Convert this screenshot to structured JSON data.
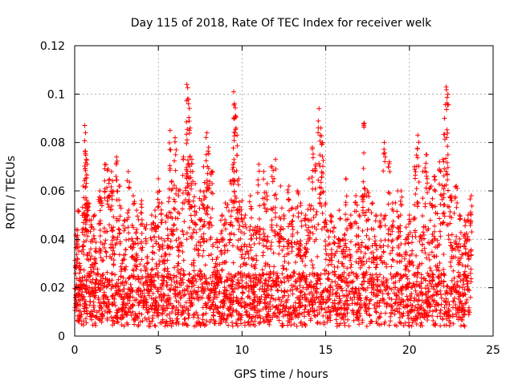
{
  "chart_data": {
    "type": "scatter",
    "title": "Day 115 of 2018, Rate Of TEC Index for receiver welk",
    "xlabel": "GPS time / hours",
    "ylabel": "ROTI / TECUs",
    "xlim": [
      0,
      25
    ],
    "ylim": [
      0,
      0.12
    ],
    "xticks": [
      0,
      5,
      10,
      15,
      20,
      25
    ],
    "xtick_labels": [
      "0",
      "5",
      "10",
      "15",
      "20",
      "25"
    ],
    "yticks": [
      0,
      0.02,
      0.04,
      0.06,
      0.08,
      0.1,
      0.12
    ],
    "ytick_labels": [
      "0",
      "0.02",
      "0.04",
      "0.06",
      "0.08",
      "0.1",
      "0.12"
    ],
    "grid": true,
    "marker": "+",
    "color": "#ff0000",
    "series": [
      {
        "name": "ROTI",
        "x": [
          0.1,
          0.2,
          0.3,
          0.5,
          0.6,
          0.65,
          0.7,
          0.75,
          0.8,
          1.0,
          1.2,
          1.5,
          1.6,
          1.8,
          2.0,
          2.2,
          2.3,
          2.5,
          2.7,
          3.0,
          3.2,
          3.5,
          3.7,
          4.0,
          4.3,
          4.6,
          4.8,
          5.0,
          5.2,
          5.5,
          5.7,
          5.8,
          6.0,
          6.2,
          6.5,
          6.7,
          6.75,
          6.8,
          6.9,
          7.0,
          7.2,
          7.5,
          7.7,
          7.9,
          8.0,
          8.2,
          8.5,
          8.8,
          9.0,
          9.3,
          9.5,
          9.55,
          9.6,
          9.7,
          9.8,
          10.0,
          10.2,
          10.5,
          10.8,
          11.0,
          11.3,
          11.5,
          11.8,
          12.0,
          12.3,
          12.5,
          12.8,
          13.0,
          13.3,
          13.5,
          13.8,
          14.0,
          14.2,
          14.4,
          14.6,
          14.7,
          14.8,
          15.0,
          15.3,
          15.5,
          15.8,
          16.0,
          16.2,
          16.5,
          16.8,
          17.0,
          17.2,
          17.3,
          17.5,
          17.8,
          18.0,
          18.3,
          18.5,
          18.8,
          19.0,
          19.3,
          19.5,
          19.8,
          20.0,
          20.3,
          20.5,
          20.8,
          21.0,
          21.3,
          21.5,
          21.8,
          22.0,
          22.1,
          22.2,
          22.3,
          22.5,
          22.8,
          23.0,
          23.3,
          23.5,
          23.7
        ],
        "y": [
          0.044,
          0.052,
          0.03,
          0.062,
          0.087,
          0.084,
          0.073,
          0.071,
          0.055,
          0.048,
          0.05,
          0.06,
          0.056,
          0.071,
          0.069,
          0.068,
          0.06,
          0.074,
          0.062,
          0.048,
          0.068,
          0.058,
          0.052,
          0.056,
          0.046,
          0.05,
          0.052,
          0.065,
          0.055,
          0.05,
          0.085,
          0.064,
          0.082,
          0.06,
          0.074,
          0.104,
          0.098,
          0.096,
          0.086,
          0.073,
          0.063,
          0.06,
          0.07,
          0.084,
          0.078,
          0.068,
          0.04,
          0.05,
          0.055,
          0.064,
          0.101,
          0.096,
          0.091,
          0.083,
          0.065,
          0.056,
          0.05,
          0.058,
          0.045,
          0.071,
          0.068,
          0.063,
          0.07,
          0.073,
          0.062,
          0.05,
          0.062,
          0.053,
          0.06,
          0.055,
          0.05,
          0.065,
          0.078,
          0.071,
          0.094,
          0.086,
          0.08,
          0.055,
          0.05,
          0.045,
          0.052,
          0.04,
          0.065,
          0.05,
          0.058,
          0.05,
          0.058,
          0.088,
          0.06,
          0.055,
          0.05,
          0.05,
          0.08,
          0.072,
          0.055,
          0.06,
          0.06,
          0.045,
          0.05,
          0.07,
          0.083,
          0.068,
          0.075,
          0.062,
          0.066,
          0.072,
          0.073,
          0.09,
          0.103,
          0.1,
          0.058,
          0.062,
          0.05,
          0.048,
          0.05,
          0.058
        ]
      }
    ]
  }
}
